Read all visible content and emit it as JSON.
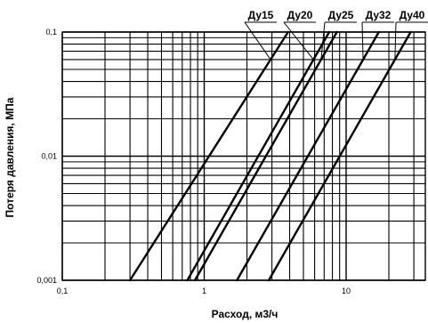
{
  "chart_data": {
    "type": "line",
    "title": "",
    "xlabel": "Расход, м3/ч",
    "ylabel": "Потеря давления, МПа",
    "x_scale": "log",
    "y_scale": "log",
    "xlim": [
      0.1,
      55
    ],
    "ylim": [
      0.001,
      0.1
    ],
    "x_ticks": [
      "0,1",
      "1",
      "10"
    ],
    "y_ticks": [
      "0,001",
      "0,01",
      "0,1"
    ],
    "grid": true,
    "legend": "top",
    "series": [
      {
        "name": "Ду15",
        "x": [
          0.3,
          3.9
        ],
        "y": [
          0.001,
          0.1
        ]
      },
      {
        "name": "Ду20",
        "x": [
          0.76,
          7.6
        ],
        "y": [
          0.001,
          0.1
        ]
      },
      {
        "name": "Ду25",
        "x": [
          0.86,
          8.6
        ],
        "y": [
          0.001,
          0.1
        ]
      },
      {
        "name": "Ду32",
        "x": [
          1.7,
          17
        ],
        "y": [
          0.001,
          0.1
        ]
      },
      {
        "name": "Ду40",
        "x": [
          2.85,
          28.5
        ],
        "y": [
          0.001,
          0.1
        ]
      }
    ],
    "colors": {
      "line": "#000000",
      "grid": "#000000",
      "background": "#ffffff"
    }
  }
}
